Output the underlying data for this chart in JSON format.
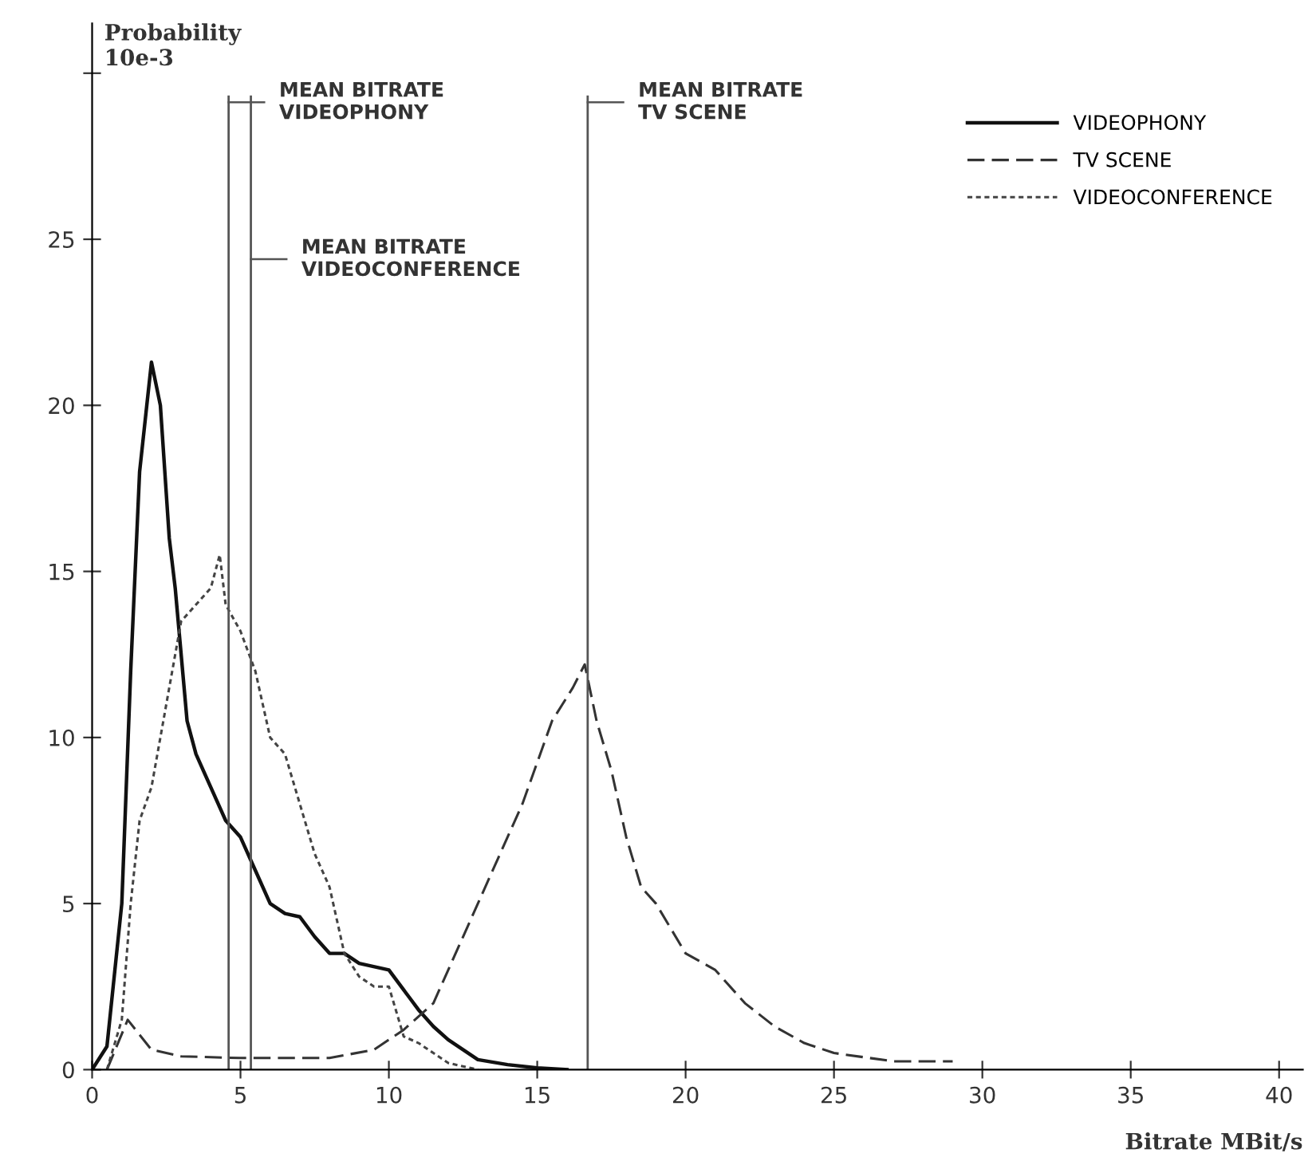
{
  "chart_data": {
    "type": "line",
    "xlabel": "Bitrate MBit/s",
    "ylabel": "Probability\n10e-3",
    "xlim": [
      0,
      40.8
    ],
    "ylim": [
      0,
      31.5
    ],
    "xticks": [
      0,
      5,
      10,
      15,
      20,
      25,
      30,
      35,
      40
    ],
    "yticks": [
      0,
      5,
      10,
      15,
      20,
      25,
      {
        "value": 30,
        "label": null
      }
    ],
    "grid": false,
    "legend": "top right",
    "marker": "none",
    "series": [
      {
        "name": "VIDEOPHONY",
        "color": "#111111",
        "line_style": "solid",
        "x": [
          0,
          0.5,
          1.0,
          1.3,
          1.6,
          2.0,
          2.3,
          2.6,
          2.8,
          3.2,
          3.5,
          4,
          4.5,
          5,
          5.5,
          6,
          6.5,
          7,
          7.5,
          8,
          8.5,
          9,
          10,
          10.5,
          11,
          11.5,
          12,
          12.5,
          13,
          14,
          15,
          16
        ],
        "values": [
          0,
          0.7,
          5,
          12,
          18,
          21.3,
          20,
          16,
          14.5,
          10.5,
          9.5,
          8.5,
          7.5,
          7,
          6,
          5,
          4.7,
          4.6,
          4,
          3.5,
          3.5,
          3.2,
          3,
          2.4,
          1.8,
          1.3,
          0.9,
          0.6,
          0.3,
          0.15,
          0.05,
          0
        ]
      },
      {
        "name": "TV SCENE",
        "color": "#333333",
        "line_style": "dashed",
        "x": [
          0.5,
          1.2,
          2,
          3,
          5,
          8,
          9.5,
          10.5,
          11.5,
          12.5,
          13.5,
          14.5,
          15.5,
          16.2,
          16.6,
          17,
          17.5,
          18,
          18.5,
          19,
          20,
          21,
          22,
          23,
          24,
          25,
          27,
          29
        ],
        "values": [
          0,
          1.5,
          0.6,
          0.4,
          0.35,
          0.35,
          0.6,
          1.2,
          2,
          4,
          6,
          8,
          10.5,
          11.5,
          12.2,
          10.5,
          9,
          7,
          5.5,
          5,
          3.5,
          3,
          2,
          1.3,
          0.8,
          0.5,
          0.25,
          0.25
        ]
      },
      {
        "name": "VIDEOCONFERENCE",
        "color": "#444444",
        "line_style": "dotted",
        "x": [
          0.5,
          1,
          1.3,
          1.6,
          2,
          2.5,
          3,
          3.5,
          4,
          4.3,
          4.5,
          5,
          5.5,
          6,
          6.5,
          7,
          7.5,
          8,
          8.5,
          9,
          9.5,
          10,
          10.5,
          11,
          11.5,
          12,
          13
        ],
        "values": [
          0,
          1.5,
          5,
          7.5,
          8.5,
          11,
          13.5,
          14,
          14.5,
          15.5,
          14,
          13.2,
          12,
          10,
          9.5,
          8,
          6.5,
          5.5,
          3.5,
          2.8,
          2.5,
          2.5,
          1,
          0.8,
          0.5,
          0.2,
          0
        ]
      }
    ],
    "ref_lines": [
      {
        "axis": "x",
        "value": 4.6,
        "label": "MEAN BITRATE\nVIDEOPHONY",
        "color": "#555555",
        "line_style": "solid"
      },
      {
        "axis": "x",
        "value": 5.35,
        "label": "MEAN BITRATE\nVIDEOCONFERENCE",
        "color": "#555555",
        "line_style": "solid"
      },
      {
        "axis": "x",
        "value": 16.7,
        "label": "MEAN BITRATE\nTV SCENE",
        "color": "#555555",
        "line_style": "solid"
      }
    ]
  }
}
